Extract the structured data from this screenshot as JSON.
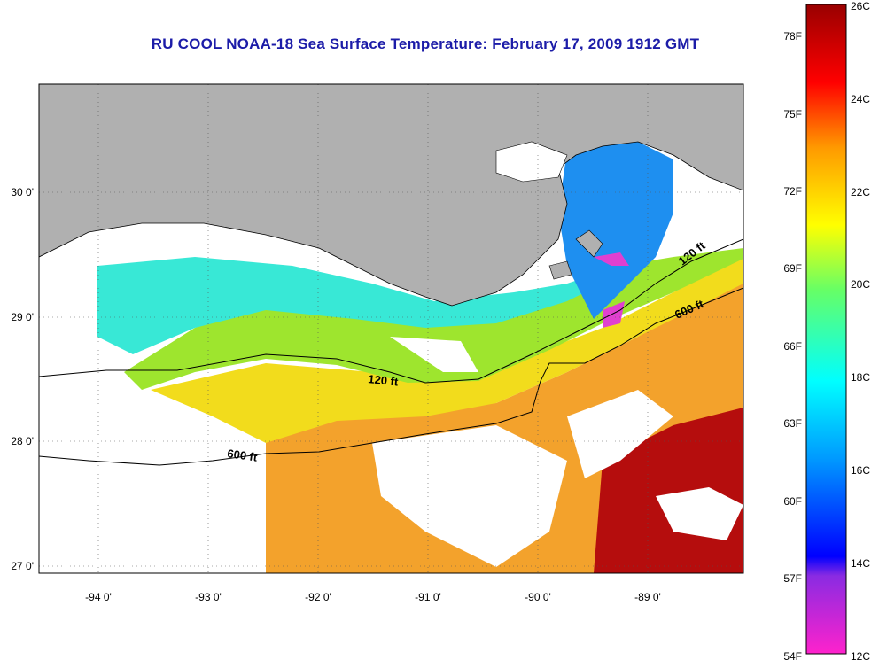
{
  "title": "RU COOL  NOAA-18  Sea Surface Temperature:  February 17, 2009 1912 GMT",
  "map": {
    "lon_ticks": [
      "-94 0'",
      "-93 0'",
      "-92 0'",
      "-91 0'",
      "-90 0'",
      "-89 0'"
    ],
    "lat_ticks": [
      "27 0'",
      "28 0'",
      "29 0'",
      "30 0'"
    ],
    "lon_range": [
      -94.5,
      -88.2
    ],
    "lat_range": [
      26.95,
      30.85
    ],
    "contour_labels": [
      {
        "id": "c120-w",
        "text": "120 ft"
      },
      {
        "id": "c120-e",
        "text": "120 ft"
      },
      {
        "id": "c600-w",
        "text": "600 ft"
      },
      {
        "id": "c600-e",
        "text": "600 ft"
      }
    ],
    "colors": {
      "land": "#b0b0b0",
      "cloud": "#ffffff",
      "coast": "#000000"
    }
  },
  "colorbar": {
    "fahrenheit_labels": [
      "78F",
      "75F",
      "72F",
      "69F",
      "66F",
      "63F",
      "60F",
      "57F",
      "54F"
    ],
    "celsius_labels": [
      "26C",
      "24C",
      "22C",
      "20C",
      "18C",
      "16C",
      "14C",
      "12C"
    ],
    "range_c": [
      12,
      26
    ]
  }
}
